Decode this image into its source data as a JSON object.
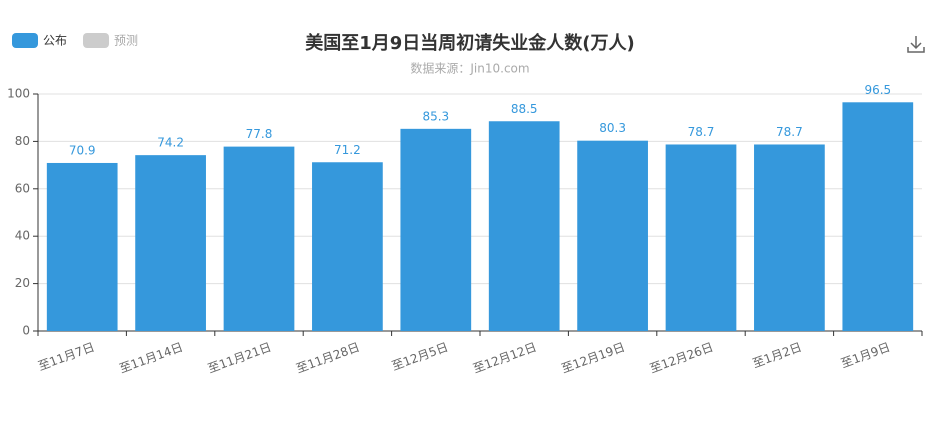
{
  "chart_data": {
    "type": "bar",
    "title": "美国至1月9日当周初请失业金人数(万人)",
    "subtitle": "数据来源：Jin10.com",
    "categories": [
      "至11月7日",
      "至11月14日",
      "至11月21日",
      "至11月28日",
      "至12月5日",
      "至12月12日",
      "至12月19日",
      "至12月26日",
      "至1月2日",
      "至1月9日"
    ],
    "series": [
      {
        "name": "公布",
        "color": "#3598dc",
        "values": [
          70.9,
          74.2,
          77.8,
          71.2,
          85.3,
          88.5,
          80.3,
          78.7,
          78.7,
          96.5
        ]
      },
      {
        "name": "预测",
        "color": "#cccccc",
        "values": [
          null,
          null,
          null,
          null,
          null,
          null,
          null,
          null,
          null,
          null
        ]
      }
    ],
    "ylim": [
      0,
      100
    ],
    "yticks": [
      0,
      20,
      40,
      60,
      80,
      100
    ],
    "grid": true,
    "legend": "top-left"
  }
}
